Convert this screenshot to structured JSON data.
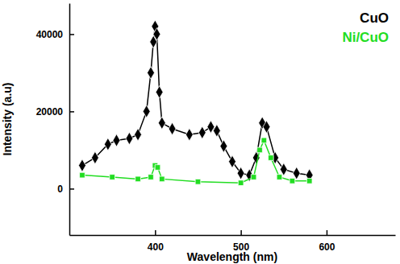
{
  "chart_data": {
    "type": "line",
    "x_label": "Wavelength (nm)",
    "y_label": "Intensity (a.u)",
    "xlim": [
      300,
      680
    ],
    "xticks": [
      400,
      500,
      600
    ],
    "ylim": [
      -12000,
      48000
    ],
    "yticks": [
      0,
      20000,
      40000
    ],
    "legend": "top-right",
    "series": [
      {
        "name": "CuO",
        "color": "#000000",
        "marker": "diamond",
        "line_style": "solid",
        "x": [
          315,
          330,
          345,
          355,
          370,
          380,
          390,
          395,
          398,
          400,
          402,
          405,
          408,
          420,
          440,
          455,
          465,
          472,
          480,
          490,
          500,
          510,
          518,
          525,
          530,
          540,
          550,
          565,
          580
        ],
        "values": [
          6000,
          8000,
          11500,
          12500,
          13000,
          14000,
          20000,
          30000,
          38000,
          42000,
          40000,
          25000,
          17000,
          15500,
          14000,
          14500,
          16000,
          15000,
          11000,
          7000,
          4000,
          3500,
          8000,
          17000,
          16000,
          8000,
          5000,
          4000,
          3500
        ]
      },
      {
        "name": "Ni/CuO",
        "color": "#22dd22",
        "marker": "square",
        "line_style": "solid",
        "x": [
          315,
          350,
          380,
          395,
          400,
          403,
          408,
          450,
          500,
          515,
          522,
          527,
          535,
          545,
          560,
          580
        ],
        "values": [
          3500,
          3000,
          2500,
          3000,
          6000,
          5500,
          2500,
          1800,
          1500,
          3000,
          10000,
          12500,
          8000,
          3000,
          2000,
          2000
        ]
      }
    ]
  }
}
